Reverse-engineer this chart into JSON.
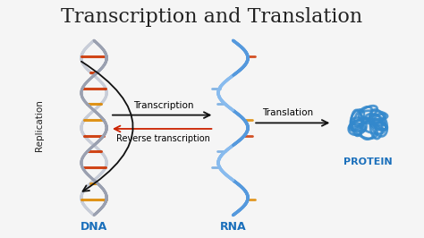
{
  "title": "Transcription and Translation",
  "title_fontsize": 16,
  "title_color": "#222222",
  "background_color": "#f5f5f5",
  "dna_label": "DNA",
  "rna_label": "RNA",
  "protein_label": "PROTEIN",
  "replication_label": "Replication",
  "transcription_label": "Transcription",
  "reverse_transcription_label": "Reverse transcription",
  "translation_label": "Translation",
  "label_color_blue": "#1a6fbb",
  "dna_color1": "#aaaaaa",
  "dna_color2": "#888888",
  "dna_bar_colors": [
    "#cc3300",
    "#dd8800",
    "#dd8800",
    "#cc3300"
  ],
  "rna_color": "#5599dd",
  "rna_bar_colors": [
    "#cc3300",
    "#dd8800"
  ],
  "protein_color": "#3388cc",
  "arrow_color": "#111111",
  "red_arrow_color": "#cc2200"
}
